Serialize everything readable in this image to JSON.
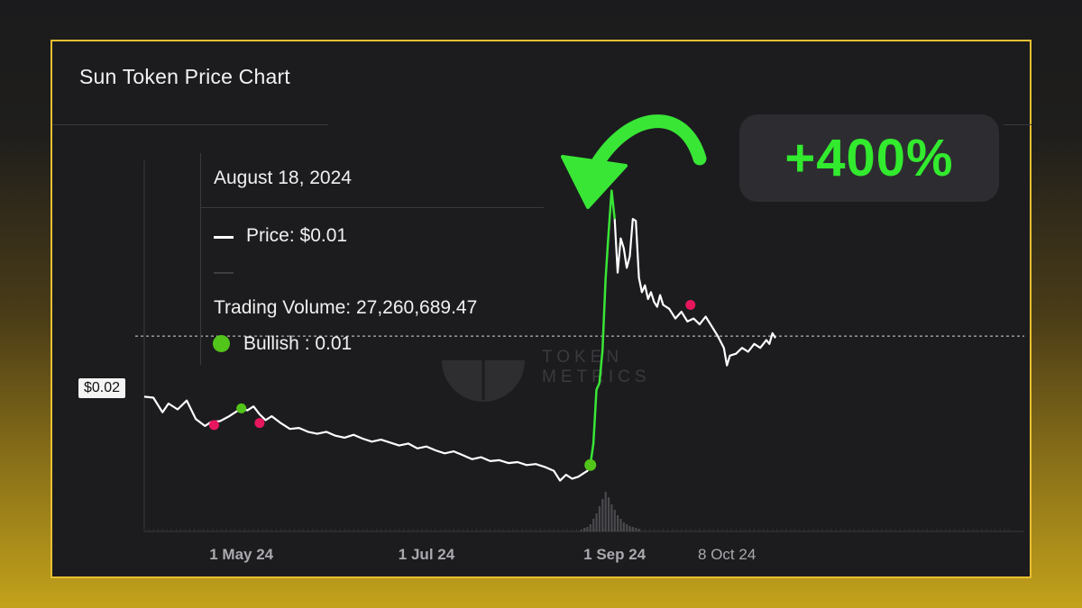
{
  "chart_data": {
    "type": "line",
    "title": "Sun Token Price Chart",
    "x_tick_labels": [
      "1 May 24",
      "1 Jul 24",
      "1 Sep 24",
      "8 Oct 24"
    ],
    "x_ticks": [
      {
        "label": "1 May 24",
        "day": 12
      },
      {
        "label": "1 Jul 24",
        "day": 73
      },
      {
        "label": "1 Sep 24",
        "day": 135
      },
      {
        "label": "8 Oct 24",
        "day": 172
      }
    ],
    "x_range_days": [
      -20,
      270
    ],
    "y_range": [
      0,
      0.038
    ],
    "price_label": "$0.02",
    "price_line_value": 0.02,
    "price_points": [
      [
        -20,
        0.0138
      ],
      [
        -17,
        0.0137
      ],
      [
        -14,
        0.0122
      ],
      [
        -12,
        0.0131
      ],
      [
        -9,
        0.0125
      ],
      [
        -6,
        0.0134
      ],
      [
        -3,
        0.0115
      ],
      [
        0,
        0.0108
      ],
      [
        2,
        0.0112
      ],
      [
        5,
        0.0113
      ],
      [
        8,
        0.0118
      ],
      [
        10,
        0.0122
      ],
      [
        12,
        0.0126
      ],
      [
        14,
        0.0124
      ],
      [
        16,
        0.0128
      ],
      [
        18,
        0.012
      ],
      [
        20,
        0.0114
      ],
      [
        22,
        0.0118
      ],
      [
        25,
        0.0111
      ],
      [
        28,
        0.0105
      ],
      [
        31,
        0.0106
      ],
      [
        34,
        0.0102
      ],
      [
        37,
        0.01
      ],
      [
        40,
        0.0102
      ],
      [
        43,
        0.0098
      ],
      [
        46,
        0.0096
      ],
      [
        49,
        0.0099
      ],
      [
        52,
        0.0095
      ],
      [
        55,
        0.0092
      ],
      [
        58,
        0.0094
      ],
      [
        61,
        0.0091
      ],
      [
        64,
        0.0088
      ],
      [
        67,
        0.009
      ],
      [
        70,
        0.0085
      ],
      [
        73,
        0.0087
      ],
      [
        76,
        0.0083
      ],
      [
        79,
        0.008
      ],
      [
        82,
        0.0082
      ],
      [
        85,
        0.0078
      ],
      [
        88,
        0.0074
      ],
      [
        91,
        0.0076
      ],
      [
        94,
        0.0072
      ],
      [
        97,
        0.0073
      ],
      [
        100,
        0.007
      ],
      [
        103,
        0.0071
      ],
      [
        106,
        0.0068
      ],
      [
        109,
        0.0069
      ],
      [
        112,
        0.0066
      ],
      [
        115,
        0.0062
      ],
      [
        117,
        0.0052
      ],
      [
        119,
        0.0058
      ],
      [
        121,
        0.0054
      ],
      [
        123,
        0.0056
      ],
      [
        125,
        0.006
      ],
      [
        126,
        0.0062
      ],
      [
        127,
        0.0068
      ]
    ],
    "rally_points": [
      [
        127,
        0.0068
      ],
      [
        128,
        0.009
      ],
      [
        129,
        0.0145
      ],
      [
        130,
        0.0152
      ],
      [
        131,
        0.0185
      ],
      [
        132,
        0.0258
      ],
      [
        133,
        0.0305
      ],
      [
        134,
        0.0349
      ],
      [
        135,
        0.032
      ]
    ],
    "after_points": [
      [
        135,
        0.032
      ],
      [
        136,
        0.0265
      ],
      [
        137,
        0.03
      ],
      [
        138,
        0.029
      ],
      [
        139,
        0.027
      ],
      [
        140,
        0.0282
      ],
      [
        141,
        0.032
      ],
      [
        142,
        0.0318
      ],
      [
        143,
        0.026
      ],
      [
        144,
        0.0245
      ],
      [
        145,
        0.0252
      ],
      [
        146,
        0.0238
      ],
      [
        147,
        0.0245
      ],
      [
        148,
        0.0235
      ],
      [
        149,
        0.023
      ],
      [
        150,
        0.0242
      ],
      [
        151,
        0.0232
      ],
      [
        153,
        0.0228
      ],
      [
        155,
        0.0218
      ],
      [
        157,
        0.0225
      ],
      [
        159,
        0.0215
      ],
      [
        161,
        0.0218
      ],
      [
        163,
        0.0212
      ],
      [
        165,
        0.022
      ],
      [
        167,
        0.021
      ],
      [
        169,
        0.02
      ],
      [
        171,
        0.0188
      ],
      [
        172,
        0.017
      ],
      [
        173,
        0.018
      ],
      [
        175,
        0.0182
      ],
      [
        177,
        0.0188
      ],
      [
        179,
        0.0184
      ],
      [
        181,
        0.0192
      ],
      [
        183,
        0.0188
      ],
      [
        185,
        0.0196
      ],
      [
        186,
        0.0192
      ],
      [
        187,
        0.0203
      ],
      [
        188,
        0.0198
      ]
    ],
    "signals": [
      {
        "type": "bearish",
        "day": 3,
        "value": 0.0109
      },
      {
        "type": "bullish",
        "day": 12,
        "value": 0.0126
      },
      {
        "type": "bearish",
        "day": 18,
        "value": 0.0111
      },
      {
        "type": "bullish",
        "day": 127,
        "value": 0.0068
      },
      {
        "type": "bearish",
        "day": 160,
        "value": 0.0232
      }
    ],
    "volume_bars": [
      [
        124,
        2
      ],
      [
        125,
        4
      ],
      [
        126,
        5
      ],
      [
        127,
        8
      ],
      [
        128,
        14
      ],
      [
        129,
        20
      ],
      [
        130,
        28
      ],
      [
        131,
        36
      ],
      [
        132,
        44
      ],
      [
        133,
        38
      ],
      [
        134,
        30
      ],
      [
        135,
        24
      ],
      [
        136,
        18
      ],
      [
        137,
        14
      ],
      [
        138,
        10
      ],
      [
        139,
        8
      ],
      [
        140,
        6
      ],
      [
        141,
        5
      ],
      [
        142,
        4
      ],
      [
        143,
        3
      ]
    ],
    "colors": {
      "line": "#ffffff",
      "rally": "#39e636",
      "bullish": "#52c41a",
      "bearish": "#e8175d",
      "volume": "#4a4a4e",
      "grid_axis": "#3a3a3e"
    }
  },
  "tooltip": {
    "date": "August 18, 2024",
    "price": "Price: $0.01",
    "trading_volume": "Trading Volume: 27,260,689.47",
    "bullish": "Bullish : 0.01"
  },
  "badge": {
    "text": "+400%"
  },
  "watermark": {
    "line1": "TOKEN",
    "line2": "METRICS"
  }
}
